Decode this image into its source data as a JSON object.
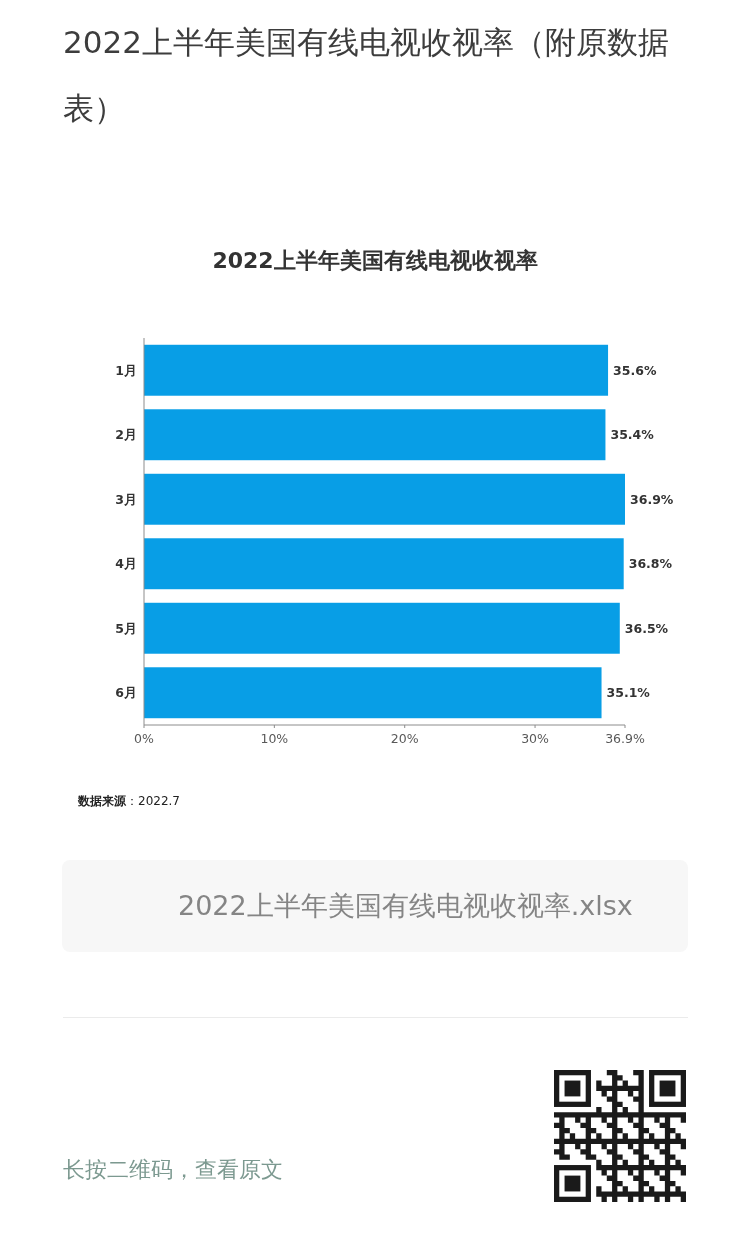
{
  "chart_data": {
    "type": "bar",
    "orientation": "horizontal",
    "title": "2022上半年美国有线电视收视率",
    "categories": [
      "1月",
      "2月",
      "3月",
      "4月",
      "5月",
      "6月"
    ],
    "values": [
      35.6,
      35.4,
      36.9,
      36.8,
      36.5,
      35.1
    ],
    "value_labels": [
      "35.6%",
      "35.4%",
      "36.9%",
      "36.8%",
      "36.5%",
      "35.1%"
    ],
    "color": "#089ee6",
    "xlim": [
      0,
      36.9
    ],
    "xticks": [
      {
        "value": 0,
        "label": "0%"
      },
      {
        "value": 10,
        "label": "10%"
      },
      {
        "value": 20,
        "label": "20%"
      },
      {
        "value": 30,
        "label": "30%"
      },
      {
        "value": 36.9,
        "label": "36.9%"
      }
    ],
    "annotations": [
      "2022上半年美国有线电视收视率（附原数据表）",
      "**数据来源**：2022.7",
      "2022上半年美国有线电视收视率.xlsx",
      "长按二维码，查看原文"
    ]
  }
}
